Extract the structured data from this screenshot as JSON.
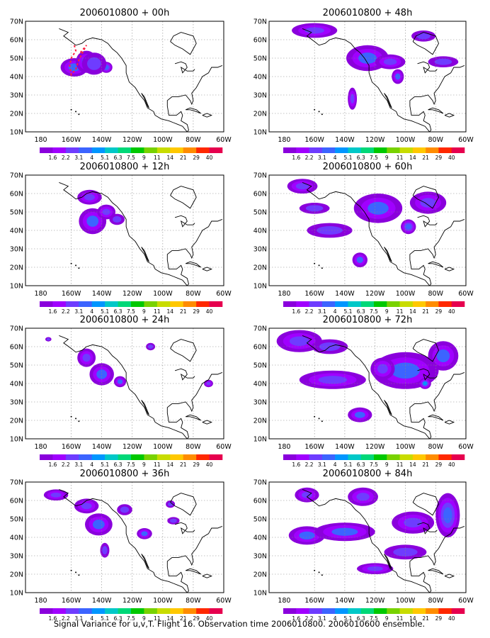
{
  "footer": "Signal Variance for u,v,T. Flight 16. Observation time 2006010800. 2006010600 ensemble.",
  "chart_data": [
    {
      "type": "heatmap",
      "title": "2006010800 + 00h",
      "blobs": [
        [
          -158,
          45,
          9,
          5,
          2.6
        ],
        [
          -150,
          48,
          7,
          6,
          2.8
        ],
        [
          -137,
          45,
          4,
          3,
          3.2
        ],
        [
          -145,
          47,
          8,
          6,
          1.6
        ]
      ],
      "flight_track": [
        [
          -158,
          57
        ],
        [
          -157,
          54
        ],
        [
          -160,
          50
        ],
        [
          -161,
          46
        ],
        [
          -160,
          41
        ],
        [
          -157,
          44
        ],
        [
          -155,
          49
        ],
        [
          -152,
          54
        ],
        [
          -150,
          57
        ],
        [
          -152,
          55
        ],
        [
          -155,
          52
        ]
      ]
    },
    {
      "type": "heatmap",
      "title": "2006010800 + 12h",
      "blobs": [
        [
          -146,
          45,
          9,
          7,
          2.8
        ],
        [
          -148,
          58,
          8,
          4,
          2.2
        ],
        [
          -137,
          50,
          6,
          4,
          2.2
        ],
        [
          -130,
          46,
          5,
          3,
          2.0
        ]
      ]
    },
    {
      "type": "heatmap",
      "title": "2006010800 + 24h",
      "blobs": [
        [
          -140,
          45,
          8,
          6,
          2.8
        ],
        [
          -150,
          54,
          6,
          5,
          2.2
        ],
        [
          -128,
          41,
          4,
          3,
          2.6
        ],
        [
          -108,
          60,
          3,
          2,
          1.9
        ],
        [
          -175,
          64,
          2,
          1.2,
          1.9
        ],
        [
          -70,
          40,
          3,
          2,
          2.2
        ]
      ]
    },
    {
      "type": "heatmap",
      "title": "2006010800 + 36h",
      "blobs": [
        [
          -142,
          47,
          9,
          6,
          2.9
        ],
        [
          -170,
          63,
          8,
          3,
          2.3
        ],
        [
          -150,
          57,
          8,
          4,
          2.2
        ],
        [
          -112,
          42,
          5,
          3,
          2.8
        ],
        [
          -125,
          55,
          5,
          3,
          2.0
        ],
        [
          -138,
          33,
          3,
          4,
          2.0
        ],
        [
          -95,
          58,
          3,
          2,
          1.9
        ],
        [
          -93,
          49,
          4,
          2,
          2.0
        ]
      ]
    },
    {
      "type": "heatmap",
      "title": "2006010800 + 48h",
      "blobs": [
        [
          -160,
          65,
          15,
          4,
          2.4
        ],
        [
          -125,
          50,
          14,
          7,
          2.7
        ],
        [
          -105,
          40,
          4,
          4,
          3.0
        ],
        [
          -135,
          28,
          3,
          6,
          2.3
        ],
        [
          -110,
          48,
          10,
          4,
          2.2
        ],
        [
          -75,
          48,
          10,
          3,
          2.0
        ],
        [
          -88,
          62,
          8,
          3,
          1.9
        ]
      ]
    },
    {
      "type": "heatmap",
      "title": "2006010800 + 60h",
      "blobs": [
        [
          -168,
          64,
          10,
          4,
          2.3
        ],
        [
          -118,
          52,
          16,
          8,
          2.7
        ],
        [
          -98,
          42,
          5,
          4,
          3.4
        ],
        [
          -130,
          24,
          5,
          4,
          2.6
        ],
        [
          -150,
          40,
          15,
          4,
          2.0
        ],
        [
          -85,
          55,
          12,
          6,
          2.2
        ],
        [
          -160,
          52,
          10,
          3,
          1.9
        ]
      ]
    },
    {
      "type": "heatmap",
      "title": "2006010800 + 72h",
      "blobs": [
        [
          -170,
          63,
          15,
          6,
          2.3
        ],
        [
          -148,
          42,
          22,
          5,
          2.4
        ],
        [
          -100,
          47,
          22,
          10,
          2.7
        ],
        [
          -87,
          40,
          4,
          3,
          3.8
        ],
        [
          -130,
          23,
          8,
          4,
          2.5
        ],
        [
          -115,
          48,
          8,
          6,
          2.3
        ],
        [
          -75,
          55,
          10,
          8,
          2.7
        ],
        [
          -150,
          60,
          12,
          4,
          2.0
        ]
      ]
    },
    {
      "type": "heatmap",
      "title": "2006010800 + 84h",
      "blobs": [
        [
          -165,
          41,
          12,
          5,
          3.0
        ],
        [
          -140,
          43,
          20,
          5,
          2.5
        ],
        [
          -128,
          62,
          10,
          5,
          2.3
        ],
        [
          -165,
          63,
          8,
          4,
          2.1
        ],
        [
          -120,
          23,
          12,
          3,
          2.4
        ],
        [
          -72,
          52,
          8,
          12,
          3.2
        ],
        [
          -95,
          48,
          14,
          6,
          2.2
        ],
        [
          -100,
          32,
          14,
          4,
          2.0
        ]
      ]
    }
  ],
  "axes": {
    "x_ticks": [
      "180",
      "160W",
      "140W",
      "120W",
      "100W",
      "80W",
      "60W"
    ],
    "y_ticks": [
      "10N",
      "20N",
      "30N",
      "40N",
      "50N",
      "60N",
      "70N"
    ],
    "xlim": [
      -190,
      -60
    ],
    "ylim": [
      10,
      70
    ],
    "grid": true
  },
  "colorbar": {
    "labels": [
      "1.6",
      "2.2",
      "3.1",
      "4",
      "5.1",
      "6.3",
      "7.5",
      "9",
      "11",
      "14",
      "21",
      "29",
      "40"
    ],
    "colors": [
      "#8a00dc",
      "#a000ff",
      "#6e3cff",
      "#3c64ff",
      "#0096ff",
      "#00c8c8",
      "#00d878",
      "#00c800",
      "#78d200",
      "#c8dc00",
      "#ffc800",
      "#ff8c00",
      "#ff2800",
      "#e6004e"
    ]
  }
}
